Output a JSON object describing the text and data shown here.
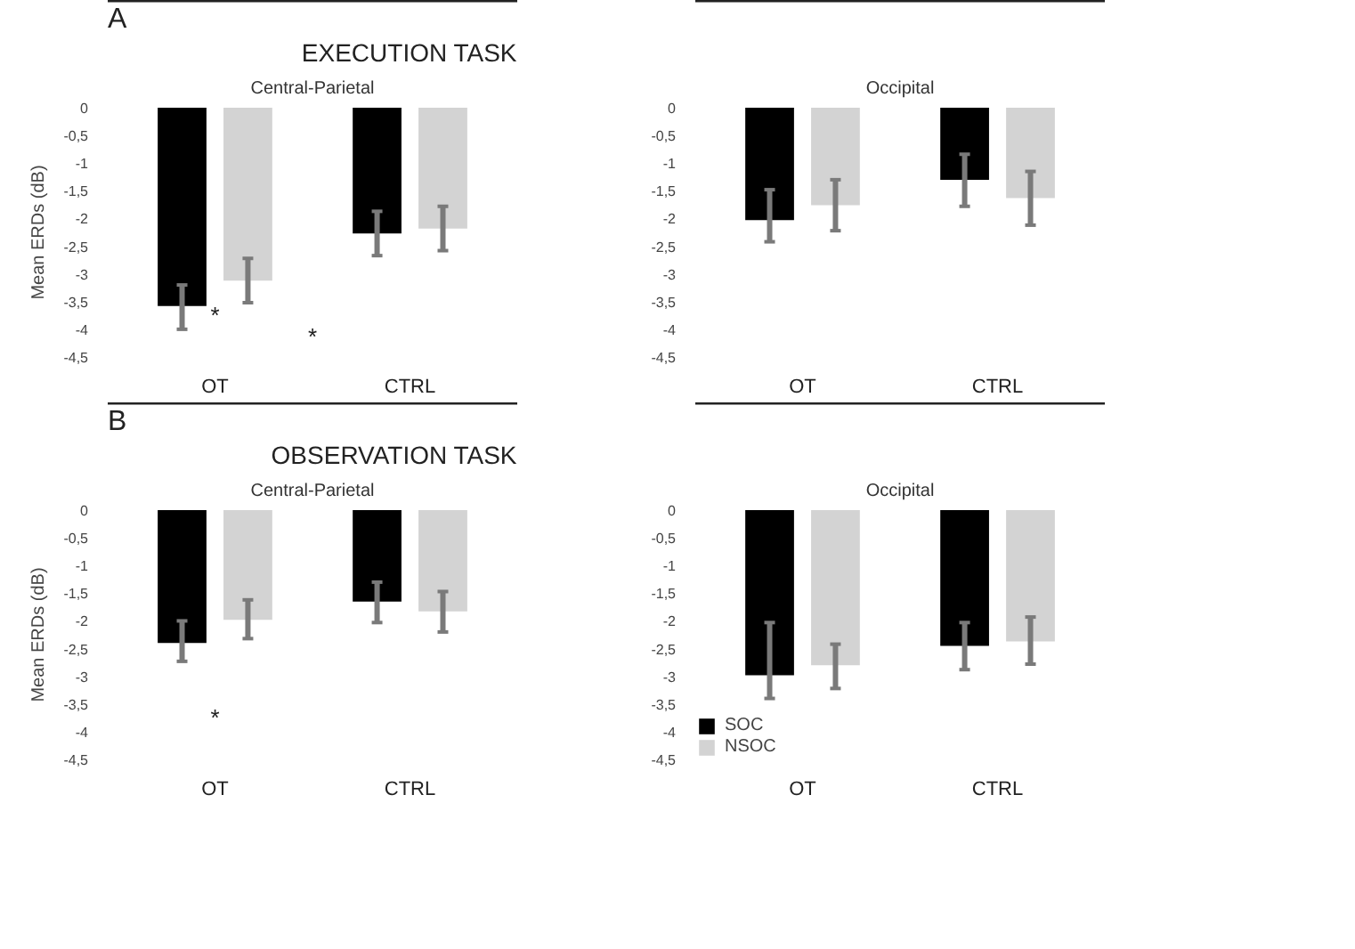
{
  "chart_data": [
    {
      "type": "bar",
      "title": "EXECUTION TASK",
      "subtitle": "Central-Parietal",
      "ylabel": "Mean ERDs (dB)",
      "categories": [
        "OT",
        "CTRL"
      ],
      "ylim": [
        -4.5,
        0
      ],
      "yticks": [
        0,
        {
          "value": -0.5,
          "label": "-0,5"
        },
        -1,
        {
          "value": -1.5,
          "label": "-1,5"
        },
        -2,
        {
          "value": -2.5,
          "label": "-2,5"
        },
        -3,
        {
          "value": -3.5,
          "label": "-3,5"
        },
        -4,
        {
          "value": -4.5,
          "label": "-4,5"
        }
      ],
      "grid": false,
      "series": [
        {
          "color": "#000000",
          "values": [
            -3.58,
            -2.27
          ],
          "errors": [
            [
              -4.0,
              -3.2
            ],
            [
              -2.67,
              -1.87
            ]
          ]
        },
        {
          "color": "#d3d3d3",
          "values": [
            -3.12,
            -2.18
          ],
          "errors": [
            [
              -3.52,
              -2.72
            ],
            [
              -2.58,
              -1.78
            ]
          ]
        }
      ],
      "annotations": [
        "A",
        "*",
        "*"
      ]
    },
    {
      "type": "bar",
      "subtitle": "Occipital",
      "categories": [
        "OT",
        "CTRL"
      ],
      "ylim": [
        -4.5,
        0
      ],
      "yticks": [
        0,
        {
          "value": -0.5,
          "label": "-0,5"
        },
        -1,
        {
          "value": -1.5,
          "label": "-1,5"
        },
        -2,
        {
          "value": -2.5,
          "label": "-2,5"
        },
        -3,
        {
          "value": -3.5,
          "label": "-3,5"
        },
        -4,
        {
          "value": -4.5,
          "label": "-4,5"
        }
      ],
      "grid": false,
      "series": [
        {
          "color": "#000000",
          "values": [
            -2.03,
            -1.3
          ],
          "errors": [
            [
              -2.42,
              -1.48
            ],
            [
              -1.78,
              -0.84
            ]
          ]
        },
        {
          "color": "#d3d3d3",
          "values": [
            -1.76,
            -1.63
          ],
          "errors": [
            [
              -2.22,
              -1.3
            ],
            [
              -2.12,
              -1.15
            ]
          ]
        }
      ]
    },
    {
      "type": "bar",
      "title": "OBSERVATION TASK",
      "subtitle": "Central-Parietal",
      "ylabel": "Mean ERDs (dB)",
      "categories": [
        "OT",
        "CTRL"
      ],
      "ylim": [
        -4.5,
        0
      ],
      "yticks": [
        0,
        {
          "value": -0.5,
          "label": "-0,5"
        },
        -1,
        {
          "value": -1.5,
          "label": "-1,5"
        },
        -2,
        {
          "value": -2.5,
          "label": "-2,5"
        },
        -3,
        {
          "value": -3.5,
          "label": "-3,5"
        },
        -4,
        {
          "value": -4.5,
          "label": "-4,5"
        }
      ],
      "grid": false,
      "series": [
        {
          "color": "#000000",
          "values": [
            -2.4,
            -1.65
          ],
          "errors": [
            [
              -2.73,
              -2.0
            ],
            [
              -2.03,
              -1.3
            ]
          ]
        },
        {
          "color": "#d3d3d3",
          "values": [
            -1.98,
            -1.83
          ],
          "errors": [
            [
              -2.32,
              -1.62
            ],
            [
              -2.2,
              -1.47
            ]
          ]
        }
      ],
      "annotations": [
        "B",
        "*"
      ]
    },
    {
      "type": "bar",
      "subtitle": "Occipital",
      "categories": [
        "OT",
        "CTRL"
      ],
      "ylim": [
        -4.5,
        0
      ],
      "yticks": [
        0,
        {
          "value": -0.5,
          "label": "-0,5"
        },
        -1,
        {
          "value": -1.5,
          "label": "-1,5"
        },
        -2,
        {
          "value": -2.5,
          "label": "-2,5"
        },
        -3,
        {
          "value": -3.5,
          "label": "-3,5"
        },
        -4,
        {
          "value": -4.5,
          "label": "-4,5"
        }
      ],
      "grid": false,
      "legend": "bottom left",
      "series": [
        {
          "name": "SOC",
          "color": "#000000",
          "values": [
            -2.98,
            -2.45
          ],
          "errors": [
            [
              -3.4,
              -2.03
            ],
            [
              -2.88,
              -2.03
            ]
          ]
        },
        {
          "name": "NSOC",
          "color": "#d3d3d3",
          "values": [
            -2.8,
            -2.37
          ],
          "errors": [
            [
              -3.22,
              -2.42
            ],
            [
              -2.78,
              -1.93
            ]
          ]
        }
      ]
    }
  ]
}
